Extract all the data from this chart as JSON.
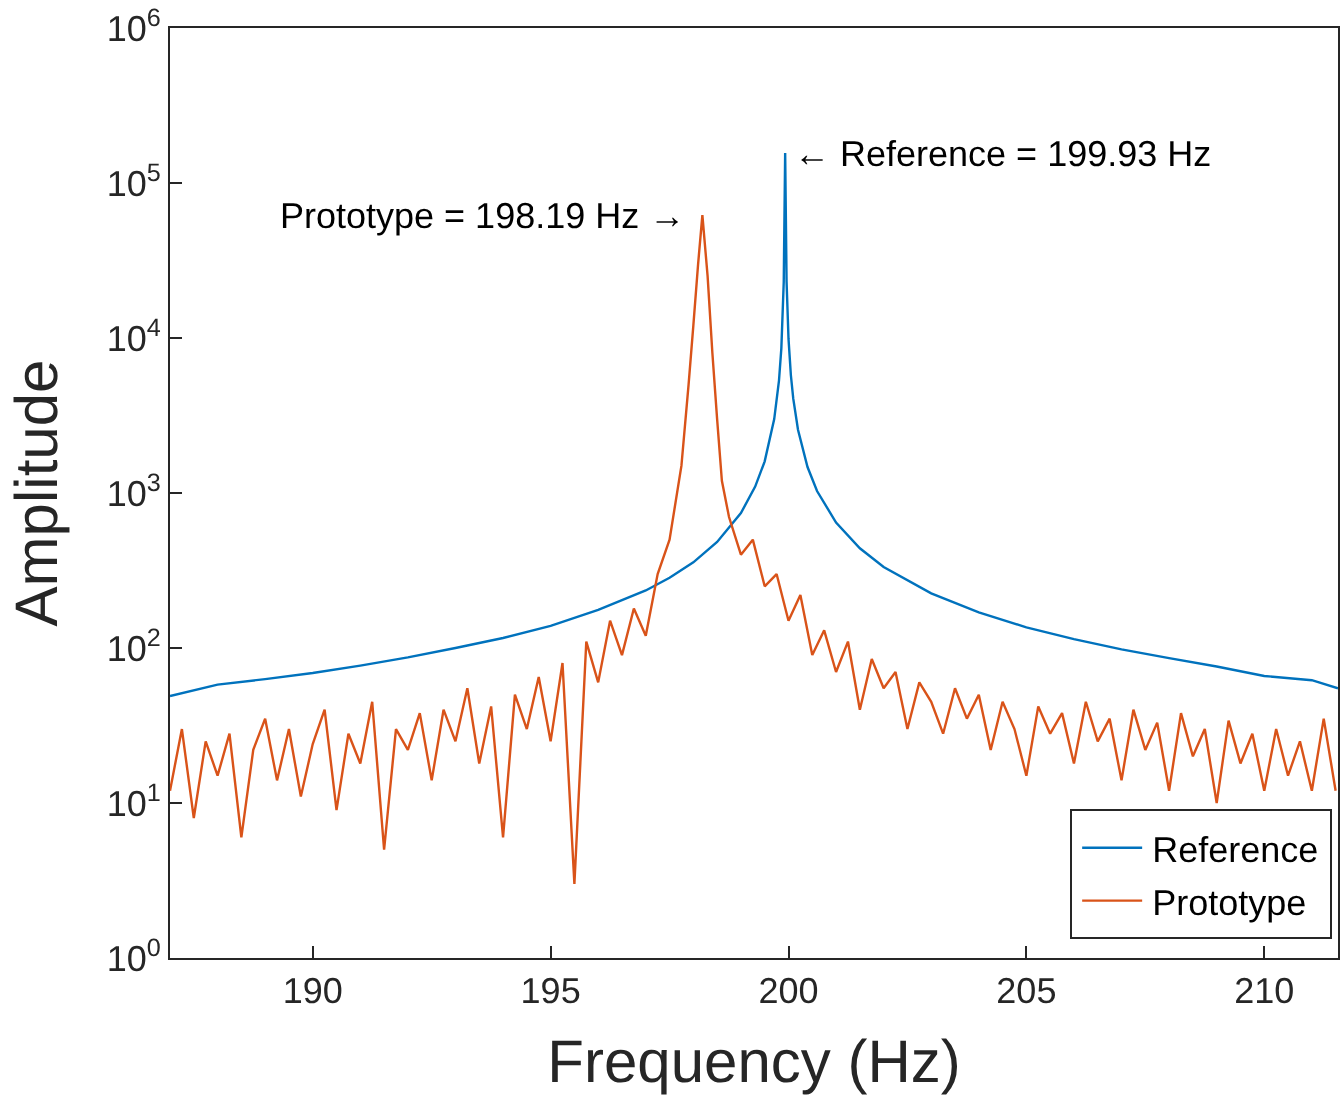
{
  "chart_data": {
    "type": "line",
    "xlabel": "Frequency (Hz)",
    "ylabel": "Amplitude",
    "log": "y",
    "legend": "bottom right",
    "marker": "none",
    "line_style": "solid",
    "xlim": [
      187,
      211.55
    ],
    "xticks": [
      190,
      195,
      200,
      205,
      210
    ],
    "ylim": [
      1,
      1000000
    ],
    "yticks": [
      {
        "value": 1,
        "label": "10$^{0}$"
      },
      {
        "value": 10,
        "label": "10$^{1}$"
      },
      {
        "value": 100,
        "label": "10$^{2}$"
      },
      {
        "value": 1000,
        "label": "10$^{3}$"
      },
      {
        "value": 10000,
        "label": "10$^{4}$"
      },
      {
        "value": 100000,
        "label": "10$^{5}$"
      },
      {
        "value": 1000000,
        "label": "10$^{6}$"
      }
    ],
    "annotations": [
      {
        "text": "Prototype = 198.19 Hz →",
        "x": 198.19,
        "y": 62000
      },
      {
        "text": "← Reference = 199.93 Hz",
        "x": 199.93,
        "y": 156000
      }
    ],
    "series": [
      {
        "name": "Reference",
        "color": "#0072bd",
        "x": [
          187,
          188,
          189,
          190,
          191,
          192,
          193,
          194,
          195,
          196,
          197,
          197.5,
          198,
          198.5,
          199,
          199.3,
          199.5,
          199.7,
          199.8,
          199.85,
          199.9,
          199.93,
          199.96,
          200,
          200.05,
          200.1,
          200.2,
          200.4,
          200.6,
          201,
          201.5,
          202,
          203,
          204,
          205,
          206,
          207,
          208,
          209,
          210,
          211,
          211.55
        ],
        "values": [
          49,
          58,
          63,
          69,
          77,
          87,
          100,
          116,
          139,
          176,
          235,
          284,
          357,
          483,
          742,
          1100,
          1600,
          3000,
          5300,
          8600,
          23000,
          156000,
          23000,
          9900,
          5750,
          4060,
          2560,
          1470,
          1030,
          645,
          440,
          333,
          225,
          170,
          136,
          114,
          98,
          86,
          76,
          66,
          62,
          55
        ]
      },
      {
        "name": "Prototype",
        "color": "#d95319",
        "x": [
          187,
          187.25,
          187.5,
          187.75,
          188,
          188.25,
          188.5,
          188.75,
          189,
          189.25,
          189.5,
          189.75,
          190,
          190.25,
          190.5,
          190.75,
          191,
          191.25,
          191.5,
          191.75,
          192,
          192.25,
          192.5,
          192.75,
          193,
          193.25,
          193.5,
          193.75,
          194,
          194.25,
          194.5,
          194.75,
          195,
          195.25,
          195.5,
          195.75,
          196,
          196.25,
          196.5,
          196.75,
          197,
          197.25,
          197.5,
          197.75,
          197.9,
          198.0,
          198.1,
          198.19,
          198.3,
          198.4,
          198.5,
          198.6,
          198.75,
          199,
          199.25,
          199.5,
          199.75,
          200,
          200.25,
          200.5,
          200.75,
          201,
          201.25,
          201.5,
          201.75,
          202,
          202.25,
          202.5,
          202.75,
          203,
          203.25,
          203.5,
          203.75,
          204,
          204.25,
          204.5,
          204.75,
          205,
          205.25,
          205.5,
          205.75,
          206,
          206.25,
          206.5,
          206.75,
          207,
          207.25,
          207.5,
          207.75,
          208,
          208.25,
          208.5,
          208.75,
          209,
          209.25,
          209.5,
          209.75,
          210,
          210.25,
          210.5,
          210.75,
          211,
          211.25,
          211.5
        ],
        "values": [
          12,
          30,
          8,
          25,
          15,
          28,
          6,
          22,
          35,
          14,
          30,
          11,
          24,
          40,
          9,
          28,
          18,
          45,
          5,
          30,
          22,
          38,
          14,
          40,
          25,
          55,
          18,
          42,
          6,
          50,
          30,
          65,
          25,
          80,
          3,
          110,
          60,
          150,
          90,
          180,
          120,
          300,
          500,
          1500,
          5000,
          12000,
          30000,
          62000,
          25000,
          8000,
          3000,
          1200,
          700,
          400,
          500,
          250,
          300,
          150,
          220,
          90,
          130,
          70,
          110,
          40,
          85,
          55,
          70,
          30,
          60,
          45,
          28,
          55,
          35,
          50,
          22,
          45,
          30,
          15,
          42,
          28,
          38,
          18,
          45,
          25,
          35,
          14,
          40,
          22,
          33,
          12,
          38,
          20,
          30,
          10,
          34,
          18,
          28,
          12,
          30,
          15,
          25,
          12,
          35,
          12
        ]
      }
    ]
  }
}
